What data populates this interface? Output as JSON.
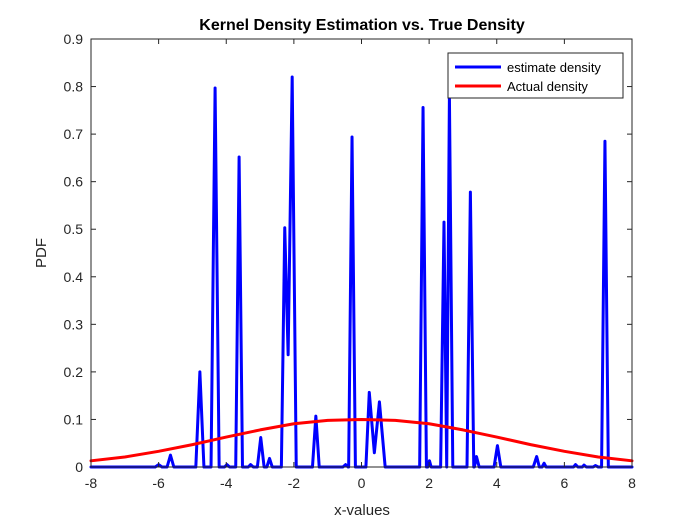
{
  "chart_data": {
    "type": "line",
    "title": "Kernel Density Estimation vs. True Density",
    "xlabel": "x-values",
    "ylabel": "PDF",
    "xlim": [
      -8,
      8
    ],
    "ylim": [
      0,
      0.9
    ],
    "xticks": [
      -8,
      -6,
      -4,
      -2,
      0,
      2,
      4,
      6,
      8
    ],
    "yticks": [
      0,
      0.1,
      0.2,
      0.3,
      0.4,
      0.5,
      0.6,
      0.7,
      0.8,
      0.9
    ],
    "legend_position": "top-right",
    "grid": false,
    "series": [
      {
        "name": "estimate density",
        "color": "#0000ff",
        "points": [
          [
            -8,
            0
          ],
          [
            -6.1,
            0
          ],
          [
            -6.0,
            0.005
          ],
          [
            -5.9,
            0
          ],
          [
            -5.75,
            0
          ],
          [
            -5.65,
            0.025
          ],
          [
            -5.55,
            0
          ],
          [
            -4.9,
            0
          ],
          [
            -4.78,
            0.2
          ],
          [
            -4.66,
            0
          ],
          [
            -4.45,
            0
          ],
          [
            -4.33,
            0.797
          ],
          [
            -4.21,
            0
          ],
          [
            -4.05,
            0
          ],
          [
            -3.98,
            0.005
          ],
          [
            -3.9,
            0
          ],
          [
            -3.72,
            0
          ],
          [
            -3.62,
            0.652
          ],
          [
            -3.52,
            0
          ],
          [
            -3.35,
            0
          ],
          [
            -3.28,
            0.005
          ],
          [
            -3.2,
            0
          ],
          [
            -3.08,
            0
          ],
          [
            -2.98,
            0.062
          ],
          [
            -2.88,
            0
          ],
          [
            -2.8,
            0
          ],
          [
            -2.72,
            0.018
          ],
          [
            -2.64,
            0
          ],
          [
            -2.37,
            0
          ],
          [
            -2.27,
            0.503
          ],
          [
            -2.17,
            0.236
          ],
          [
            -2.05,
            0.82
          ],
          [
            -1.93,
            0
          ],
          [
            -1.45,
            0
          ],
          [
            -1.35,
            0.107
          ],
          [
            -1.25,
            0
          ],
          [
            -0.55,
            0
          ],
          [
            -0.47,
            0.005
          ],
          [
            -0.4,
            0
          ],
          [
            -0.38,
            0
          ],
          [
            -0.28,
            0.694
          ],
          [
            -0.18,
            0
          ],
          [
            0.13,
            0
          ],
          [
            0.23,
            0.157
          ],
          [
            0.38,
            0.03
          ],
          [
            0.53,
            0.137
          ],
          [
            0.7,
            0
          ],
          [
            1.72,
            0
          ],
          [
            1.82,
            0.756
          ],
          [
            1.92,
            0
          ],
          [
            1.96,
            0
          ],
          [
            2.01,
            0.013
          ],
          [
            2.06,
            0
          ],
          [
            2.34,
            0
          ],
          [
            2.44,
            0.515
          ],
          [
            2.52,
            0
          ],
          [
            2.6,
            0.78
          ],
          [
            2.7,
            0
          ],
          [
            3.12,
            0
          ],
          [
            3.22,
            0.578
          ],
          [
            3.32,
            0
          ],
          [
            3.34,
            0
          ],
          [
            3.4,
            0.022
          ],
          [
            3.48,
            0
          ],
          [
            3.92,
            0
          ],
          [
            4.02,
            0.045
          ],
          [
            4.12,
            0
          ],
          [
            5.08,
            0
          ],
          [
            5.18,
            0.022
          ],
          [
            5.26,
            0
          ],
          [
            5.34,
            0
          ],
          [
            5.4,
            0.008
          ],
          [
            5.46,
            0
          ],
          [
            6.27,
            0
          ],
          [
            6.33,
            0.005
          ],
          [
            6.4,
            0
          ],
          [
            6.53,
            0
          ],
          [
            6.58,
            0.004
          ],
          [
            6.65,
            0
          ],
          [
            6.85,
            0
          ],
          [
            6.92,
            0.003
          ],
          [
            7.0,
            0
          ],
          [
            7.1,
            0
          ],
          [
            7.2,
            0.685
          ],
          [
            7.3,
            0
          ],
          [
            8,
            0
          ]
        ]
      },
      {
        "name": "Actual density",
        "color": "#ff0000",
        "points": [
          [
            -8,
            0.013
          ],
          [
            -7,
            0.021
          ],
          [
            -6,
            0.033
          ],
          [
            -5,
            0.047
          ],
          [
            -4,
            0.063
          ],
          [
            -3,
            0.078
          ],
          [
            -2,
            0.091
          ],
          [
            -1,
            0.098
          ],
          [
            0,
            0.1
          ],
          [
            1,
            0.098
          ],
          [
            2,
            0.091
          ],
          [
            3,
            0.078
          ],
          [
            4,
            0.063
          ],
          [
            5,
            0.047
          ],
          [
            6,
            0.033
          ],
          [
            7,
            0.021
          ],
          [
            8,
            0.013
          ]
        ]
      }
    ]
  }
}
